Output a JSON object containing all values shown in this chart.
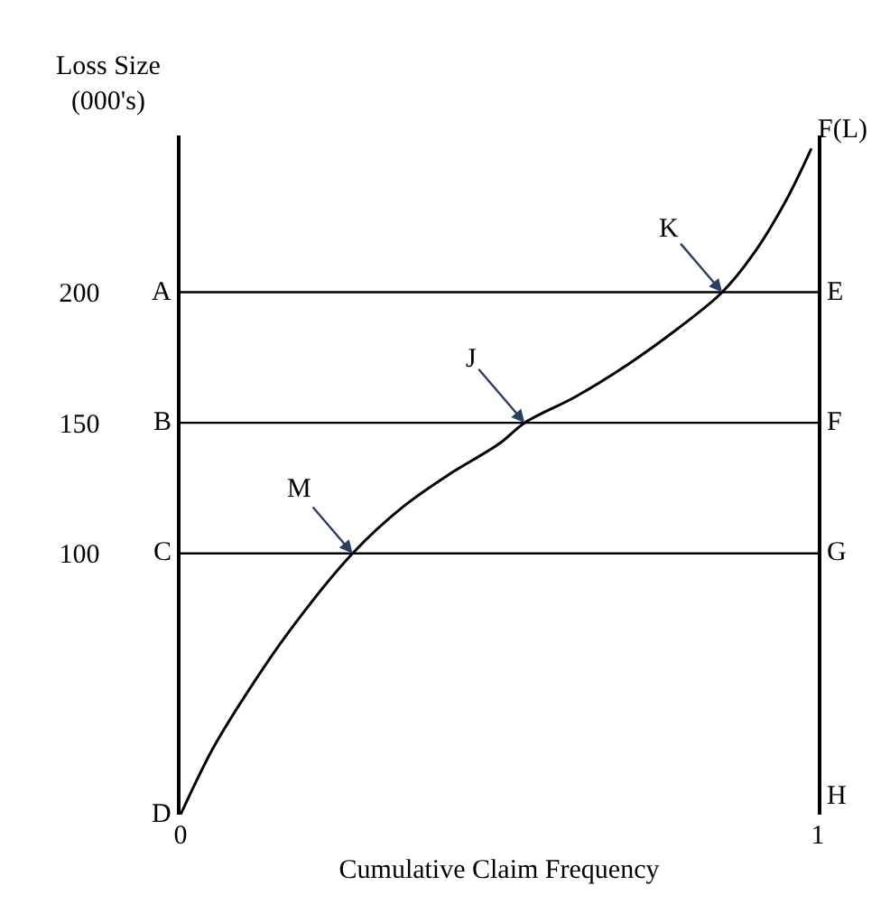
{
  "chart_data": {
    "type": "line",
    "xlabel": "Cumulative Claim Frequency",
    "ylabel": "Loss Size\n(000's)",
    "x": [
      0,
      0.05,
      0.1,
      0.17,
      0.27,
      0.35,
      0.42,
      0.5,
      0.54,
      0.62,
      0.7,
      0.78,
      0.85,
      0.9,
      0.95,
      0.99
    ],
    "series": [
      {
        "name": "F(L)",
        "color": "#000000",
        "values": [
          0,
          25,
          45,
          70,
          100,
          118,
          130,
          142,
          150,
          160,
          172,
          186,
          200,
          215,
          235,
          255
        ]
      }
    ],
    "xlim": [
      0,
      1
    ],
    "ylim": [
      0,
      260
    ],
    "xticks": [
      0,
      1
    ],
    "yticks": [
      100,
      150,
      200
    ],
    "legend": false,
    "marker": "none",
    "line_style": "solid",
    "ref_lines": [
      {
        "axis": "y",
        "value": 200
      },
      {
        "axis": "y",
        "value": 150
      },
      {
        "axis": "y",
        "value": 100
      }
    ],
    "annotations": [
      {
        "text": "A",
        "x": 0,
        "y": 200
      },
      {
        "text": "B",
        "x": 0,
        "y": 150
      },
      {
        "text": "C",
        "x": 0,
        "y": 100
      },
      {
        "text": "D",
        "x": 0,
        "y": 0
      },
      {
        "text": "E",
        "x": 1,
        "y": 200
      },
      {
        "text": "F",
        "x": 1,
        "y": 150
      },
      {
        "text": "G",
        "x": 1,
        "y": 100
      },
      "H",
      {
        "text": "K",
        "x": 0.85,
        "y": 200
      },
      {
        "text": "J",
        "x": 0.54,
        "y": 150
      },
      {
        "text": "M",
        "x": 0.27,
        "y": 100
      }
    ]
  }
}
